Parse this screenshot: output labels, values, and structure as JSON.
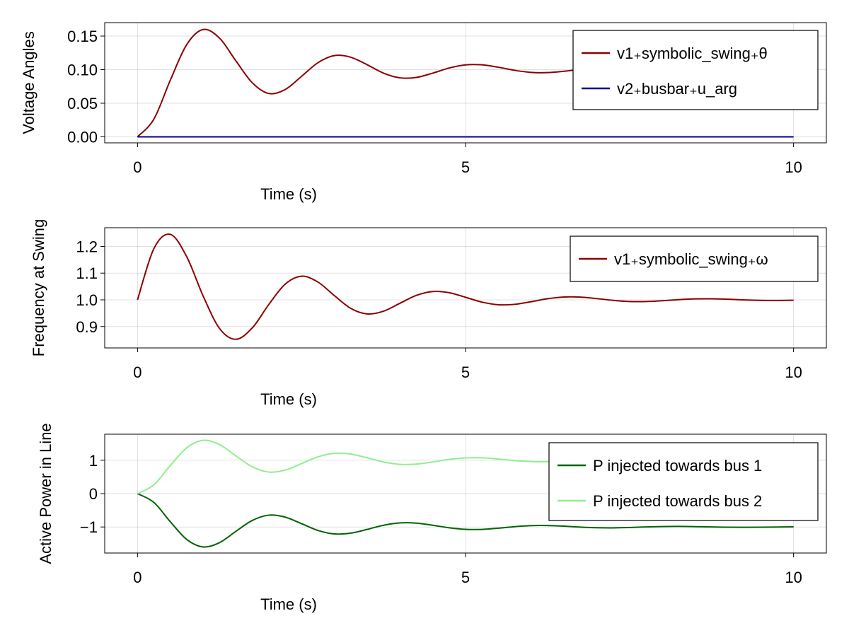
{
  "chart_data": [
    {
      "type": "line",
      "ylabel": "Voltage Angles",
      "xlabel": "Time (s)",
      "xlim": [
        -0.5,
        10.5
      ],
      "ylim": [
        -0.009,
        0.17
      ],
      "xticks": [
        "0",
        "5",
        "10"
      ],
      "xtick_values": [
        0,
        5,
        10
      ],
      "yticks": [
        "0.00",
        "0.05",
        "0.10",
        "0.15"
      ],
      "ytick_values": [
        0,
        0.05,
        0.1,
        0.15
      ],
      "grid": true,
      "legend_position": "top-right",
      "x": [
        0,
        0.25,
        0.5,
        0.75,
        1,
        1.25,
        1.5,
        1.75,
        2,
        2.25,
        2.5,
        2.75,
        3,
        3.25,
        3.5,
        3.75,
        4,
        4.25,
        4.5,
        4.75,
        5,
        5.25,
        5.5,
        5.75,
        6,
        6.25,
        6.5,
        6.75,
        7,
        7.25,
        7.5,
        7.75,
        8,
        8.25,
        8.5,
        8.75,
        9,
        9.25,
        9.5,
        9.75,
        10
      ],
      "series": [
        {
          "name": "v1₊symbolic_swing₊θ",
          "color": "#8b0000",
          "values": [
            0,
            0.0264,
            0.0843,
            0.1373,
            0.1597,
            0.1469,
            0.113,
            0.0804,
            0.0645,
            0.0704,
            0.09,
            0.1103,
            0.1209,
            0.1185,
            0.1073,
            0.0948,
            0.0878,
            0.0884,
            0.0948,
            0.1024,
            0.1071,
            0.1072,
            0.1036,
            0.099,
            0.0959,
            0.0956,
            0.0976,
            0.1004,
            0.1023,
            0.1027,
            0.1016,
            0.0999,
            0.0987,
            0.0984,
            0.099,
            0.0999,
            0.1007,
            0.101,
            0.1007,
            0.1001,
            0.0996
          ]
        },
        {
          "name": "v2₊busbar₊u_arg",
          "color": "#00008b",
          "values": [
            0,
            0,
            0,
            0,
            0,
            0,
            0,
            0,
            0,
            0,
            0,
            0,
            0,
            0,
            0,
            0,
            0,
            0,
            0,
            0,
            0,
            0,
            0,
            0,
            0,
            0,
            0,
            0,
            0,
            0,
            0,
            0,
            0,
            0,
            0,
            0,
            0,
            0,
            0,
            0,
            0
          ]
        }
      ]
    },
    {
      "type": "line",
      "ylabel": "Frequency at Swing",
      "xlabel": "Time (s)",
      "xlim": [
        -0.5,
        10.5
      ],
      "ylim": [
        0.82,
        1.27
      ],
      "xticks": [
        "0",
        "5",
        "10"
      ],
      "xtick_values": [
        0,
        5,
        10
      ],
      "yticks": [
        "0.9",
        "1.0",
        "1.1",
        "1.2"
      ],
      "ytick_values": [
        0.9,
        1.0,
        1.1,
        1.2
      ],
      "grid": true,
      "legend_position": "top-right",
      "x": [
        0,
        0.25,
        0.5,
        0.75,
        1,
        1.25,
        1.5,
        1.75,
        2,
        2.25,
        2.5,
        2.75,
        3,
        3.25,
        3.5,
        3.75,
        4,
        4.25,
        4.5,
        4.75,
        5,
        5.25,
        5.5,
        5.75,
        6,
        6.25,
        6.5,
        6.75,
        7,
        7.25,
        7.5,
        7.75,
        8,
        8.25,
        8.5,
        8.75,
        9,
        9.25,
        9.5,
        9.75,
        10
      ],
      "series": [
        {
          "name": "v1₊symbolic_swing₊ω",
          "color": "#8b0000",
          "values": [
            1.0,
            1.192,
            1.245,
            1.1615,
            1.0146,
            0.893,
            0.8524,
            0.8952,
            0.9823,
            1.0587,
            1.0885,
            1.0667,
            1.016,
            0.9683,
            0.9473,
            0.9576,
            0.9872,
            1.0167,
            1.0312,
            1.0267,
            1.0096,
            0.9915,
            0.9816,
            0.9833,
            0.9931,
            1.0042,
            1.0107,
            1.0104,
            1.0048,
            0.9981,
            0.9938,
            0.9936,
            0.9967,
            1.0008,
            1.0036,
            1.0039,
            1.0022,
            0.9998,
            0.998,
            0.9976,
            0.9985
          ]
        }
      ]
    },
    {
      "type": "line",
      "ylabel": "Active Power in Line",
      "xlabel": "Time (s)",
      "xlim": [
        -0.5,
        10.5
      ],
      "ylim": [
        -1.78,
        1.78
      ],
      "xticks": [
        "0",
        "5",
        "10"
      ],
      "xtick_values": [
        0,
        5,
        10
      ],
      "yticks": [
        "−1",
        "0",
        "1"
      ],
      "ytick_values": [
        -1,
        0,
        1
      ],
      "grid": true,
      "legend_position": "right",
      "x": [
        0,
        0.25,
        0.5,
        0.75,
        1,
        1.25,
        1.5,
        1.75,
        2,
        2.25,
        2.5,
        2.75,
        3,
        3.25,
        3.5,
        3.75,
        4,
        4.25,
        4.5,
        4.75,
        5,
        5.25,
        5.5,
        5.75,
        6,
        6.25,
        6.5,
        6.75,
        7,
        7.25,
        7.5,
        7.75,
        8,
        8.25,
        8.5,
        8.75,
        9,
        9.25,
        9.5,
        9.75,
        10
      ],
      "series": [
        {
          "name": "P injected towards bus 1",
          "color": "#006400",
          "values": [
            0,
            -0.264,
            -0.843,
            -1.373,
            -1.597,
            -1.469,
            -1.13,
            -0.804,
            -0.645,
            -0.704,
            -0.9,
            -1.103,
            -1.209,
            -1.185,
            -1.073,
            -0.948,
            -0.878,
            -0.884,
            -0.948,
            -1.024,
            -1.071,
            -1.072,
            -1.036,
            -0.99,
            -0.959,
            -0.956,
            -0.976,
            -1.004,
            -1.023,
            -1.027,
            -1.016,
            -0.999,
            -0.987,
            -0.984,
            -0.99,
            -0.999,
            -1.007,
            -1.01,
            -1.007,
            -1.001,
            -0.996
          ]
        },
        {
          "name": "P injected towards bus 2",
          "color": "#90ee90",
          "values": [
            0,
            0.264,
            0.843,
            1.373,
            1.597,
            1.469,
            1.13,
            0.804,
            0.645,
            0.704,
            0.9,
            1.103,
            1.209,
            1.185,
            1.073,
            0.948,
            0.878,
            0.884,
            0.948,
            1.024,
            1.071,
            1.072,
            1.036,
            0.99,
            0.959,
            0.956,
            0.976,
            1.004,
            1.023,
            1.027,
            1.016,
            0.999,
            0.987,
            0.984,
            0.99,
            0.999,
            1.007,
            1.01,
            1.007,
            1.001,
            0.996
          ]
        }
      ]
    }
  ]
}
